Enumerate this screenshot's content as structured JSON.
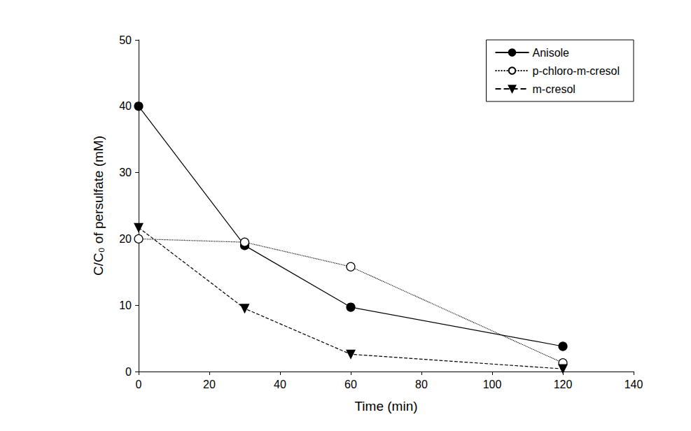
{
  "chart_data": {
    "type": "line",
    "x_label": "Time (min)",
    "y_label": "C/C₀ of persulfate (mM)",
    "xlim": [
      0,
      140
    ],
    "xticks": [
      0,
      20,
      40,
      60,
      80,
      100,
      120,
      140
    ],
    "ylim": [
      0,
      50
    ],
    "yticks": [
      0,
      10,
      20,
      30,
      40,
      50
    ],
    "grid": false,
    "legend": "upper right",
    "x": [
      0,
      30,
      60,
      120
    ],
    "series": [
      {
        "name": "Anisole",
        "color": "#000000",
        "marker": "circle",
        "line_style": "solid",
        "values": [
          40,
          19,
          9.7,
          3.8
        ]
      },
      {
        "name": "p-chloro-m-cresol",
        "color": "#000000",
        "marker": "open_circle",
        "line_style": "dotted",
        "values": [
          20,
          19.5,
          15.8,
          1.3
        ]
      },
      {
        "name": "m-cresol",
        "color": "#000000",
        "marker": "triangle_down",
        "line_style": "dashed",
        "values": [
          21.7,
          9.5,
          2.6,
          0.4
        ]
      }
    ]
  }
}
